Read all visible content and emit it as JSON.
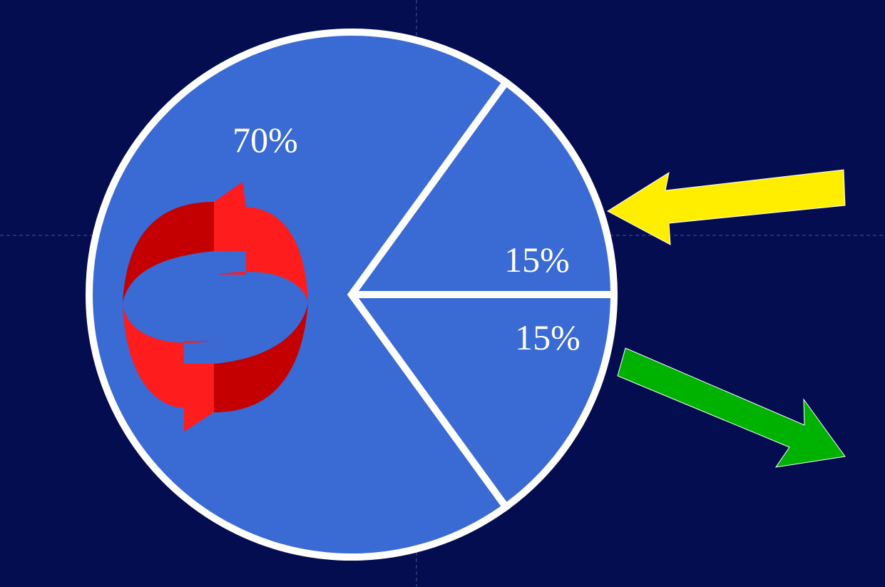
{
  "chart_data": {
    "type": "pie",
    "title": "",
    "slices": [
      {
        "label": "70%",
        "value": 70
      },
      {
        "label": "15%",
        "value": 15
      },
      {
        "label": "15%",
        "value": 15
      }
    ],
    "legend": "none",
    "colors": {
      "background": "#040d4f",
      "slice_fill": "#3a6ad4",
      "outline": "#ffffff",
      "arrow_in": "#ffee00",
      "arrow_out": "#00b200",
      "cycle_light": "#ff1c1c",
      "cycle_dark": "#c40000"
    },
    "icons": [
      "recycle-arrows-icon",
      "arrow-in-icon",
      "arrow-out-icon"
    ]
  }
}
